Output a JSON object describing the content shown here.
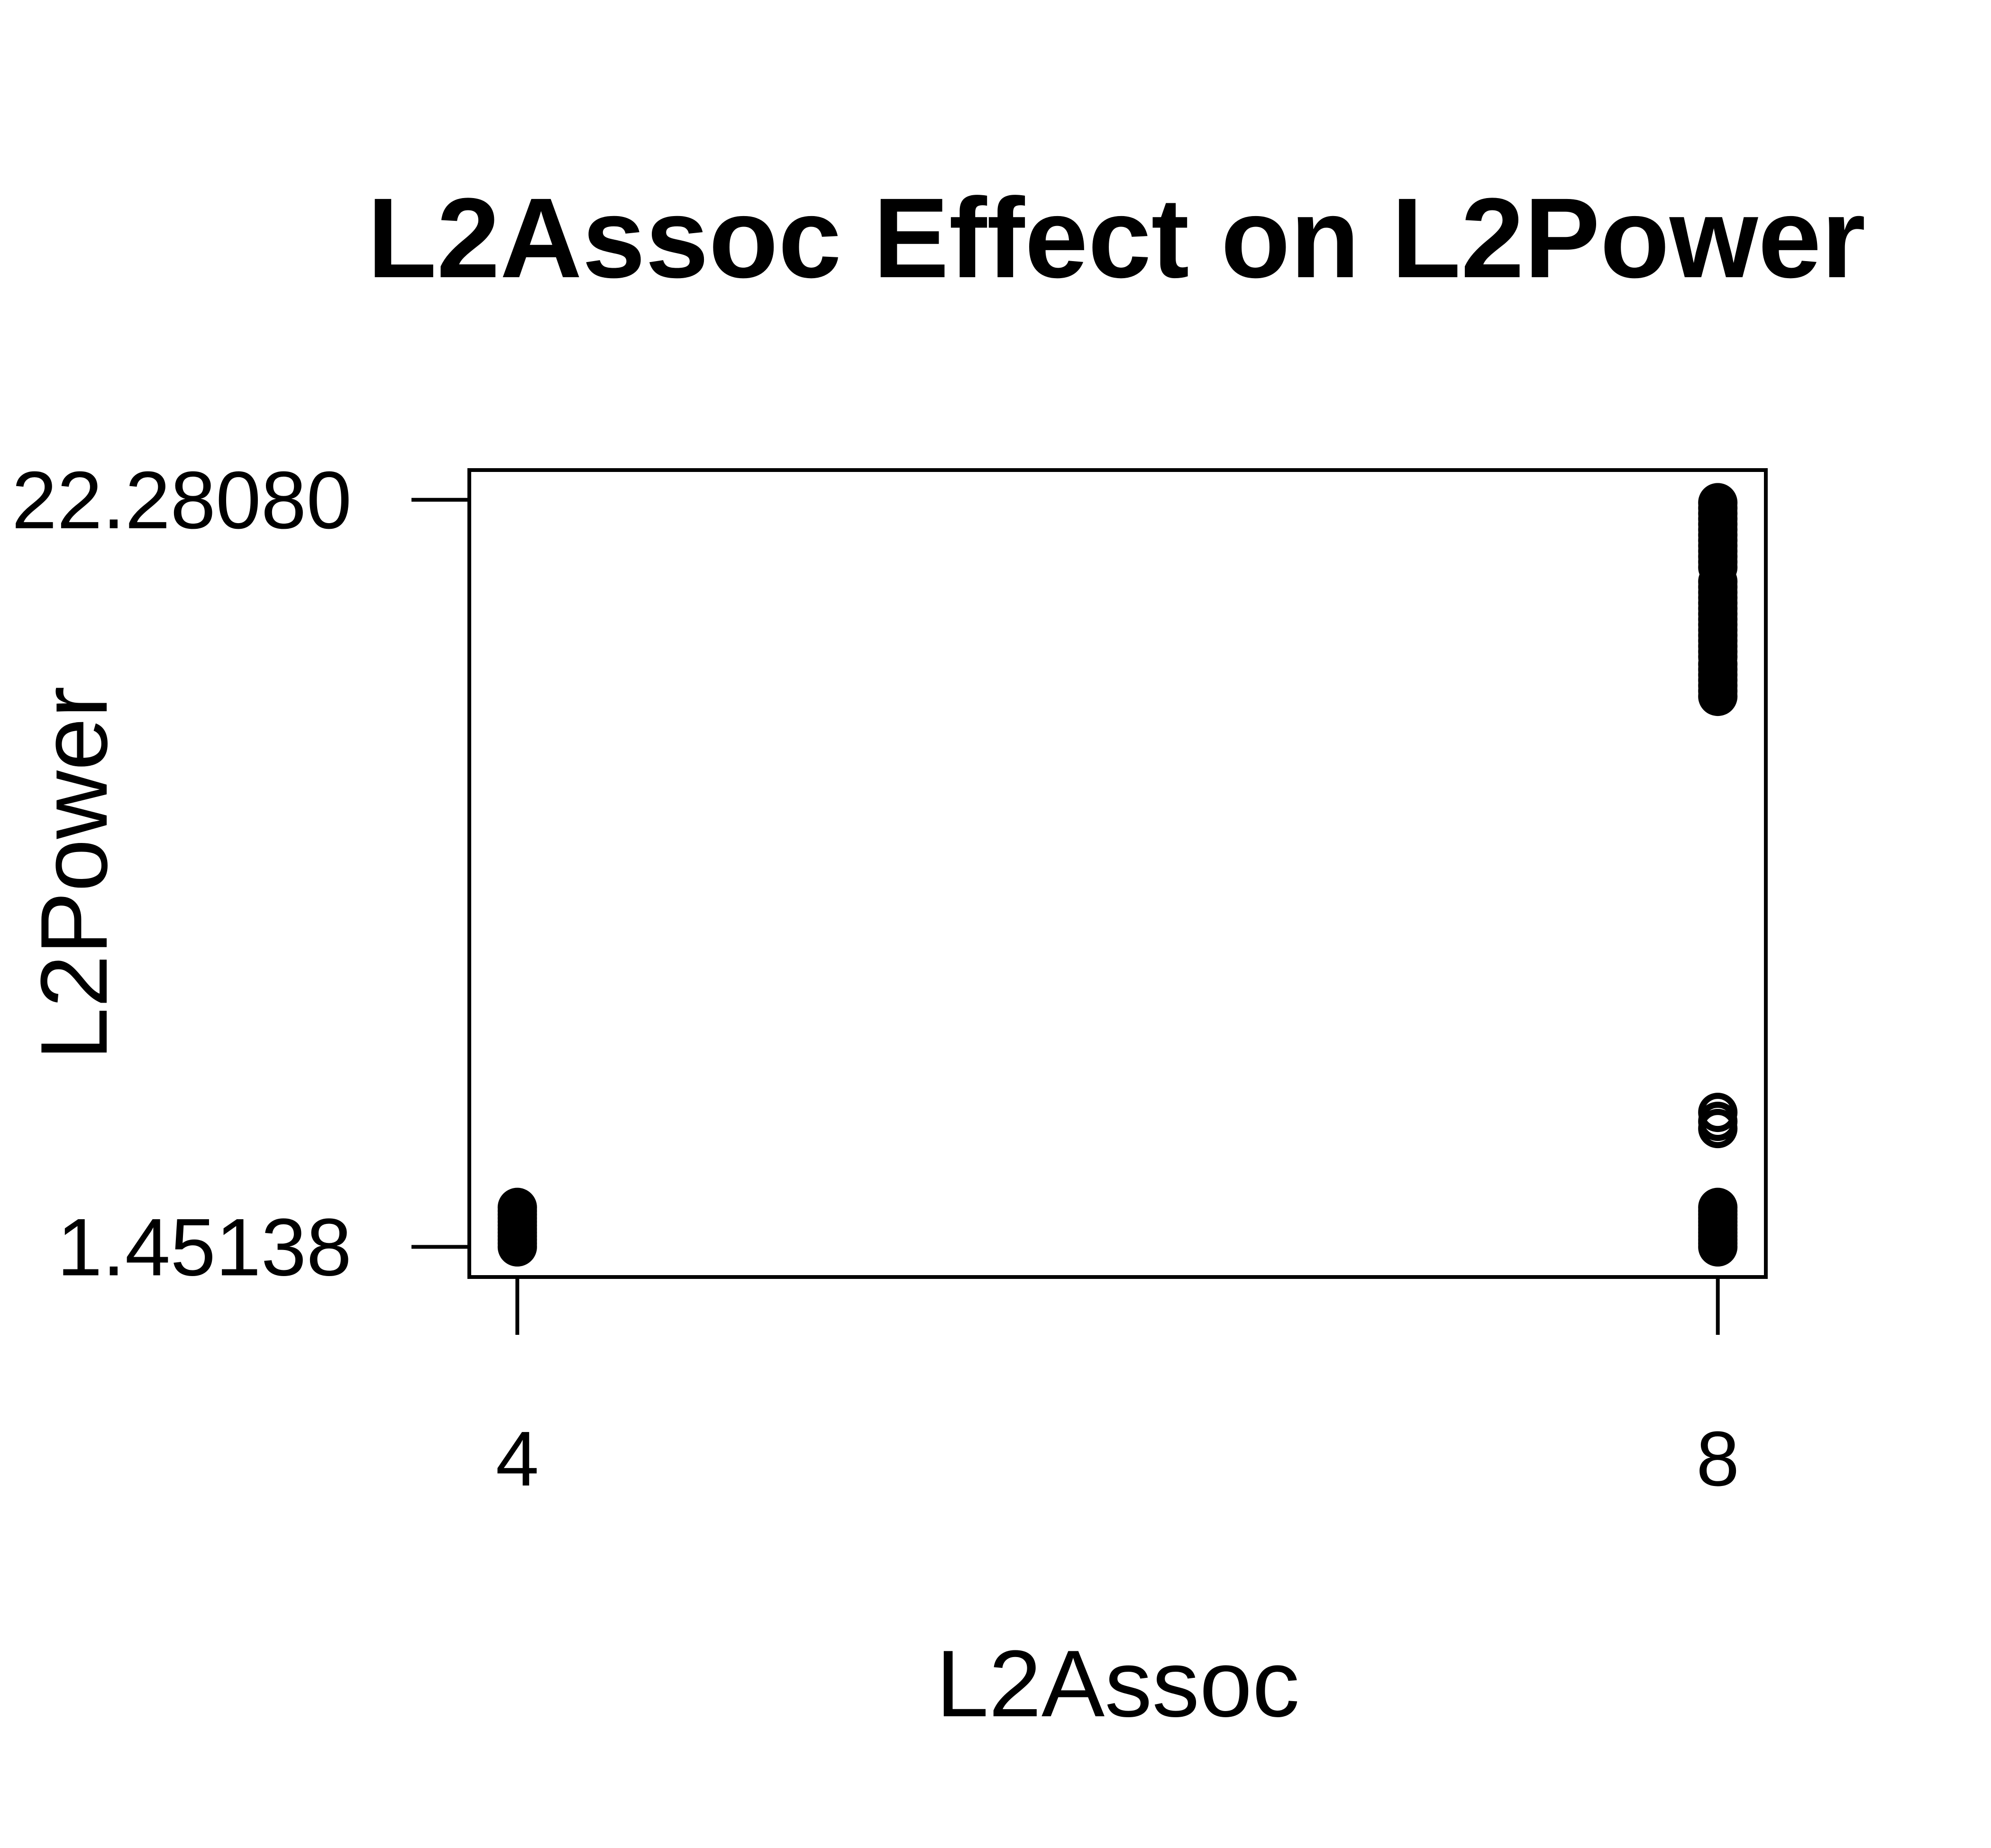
{
  "chart_data": {
    "type": "scatter",
    "title": "L2Assoc Effect on L2Power",
    "xlabel": "L2Assoc",
    "ylabel": "L2Power",
    "x_ticks": [
      "4",
      "8"
    ],
    "x_tick_values": [
      4,
      8
    ],
    "y_ticks": [
      "1.45138",
      "22.28080"
    ],
    "y_tick_values": [
      1.45138,
      22.2808
    ],
    "xlim": [
      3.84,
      8.16
    ],
    "ylim": [
      0.61,
      23.11
    ],
    "grid": false,
    "series": [
      {
        "x": [
          4,
          4,
          4,
          4,
          4,
          4,
          4,
          4,
          4,
          4,
          4,
          4,
          8,
          8,
          8,
          8,
          8,
          8,
          8,
          8,
          8,
          8,
          8,
          8,
          8,
          8,
          8,
          8,
          8,
          8,
          8,
          8,
          8,
          8,
          8,
          8,
          8,
          8,
          8,
          8,
          8,
          8,
          8,
          8,
          8,
          8,
          8,
          8,
          8,
          8,
          8,
          8,
          8,
          8,
          8,
          8,
          8,
          8,
          8,
          8,
          8,
          8
        ],
        "y": [
          1.45,
          1.55,
          1.65,
          1.75,
          1.85,
          1.95,
          2.05,
          2.15,
          2.25,
          2.35,
          2.45,
          2.55,
          22.2,
          22.05,
          21.9,
          21.75,
          21.6,
          21.45,
          21.3,
          21.15,
          21.0,
          20.85,
          20.7,
          20.55,
          20.4,
          20.0,
          19.85,
          19.7,
          19.55,
          19.4,
          19.25,
          19.1,
          18.95,
          18.8,
          18.65,
          18.5,
          18.35,
          18.2,
          18.05,
          17.9,
          17.7,
          17.55,
          17.4,
          17.25,
          17.1,
          16.95,
          16.8,
          5.2,
          4.95,
          4.75,
          1.45,
          1.55,
          1.65,
          1.75,
          1.85,
          1.95,
          2.05,
          2.15,
          2.25,
          2.35,
          2.45,
          2.55
        ]
      }
    ]
  }
}
